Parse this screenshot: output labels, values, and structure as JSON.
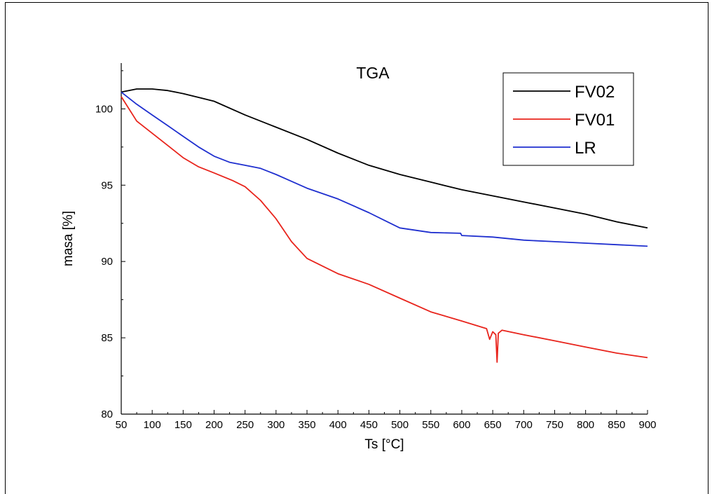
{
  "chart_data": {
    "type": "line",
    "title": "TGA",
    "xlabel": "Ts [°C]",
    "ylabel": "masa [%]",
    "xlim": [
      50,
      900
    ],
    "ylim": [
      80,
      103
    ],
    "xticks": [
      50,
      100,
      150,
      200,
      250,
      300,
      350,
      400,
      450,
      500,
      550,
      600,
      650,
      700,
      750,
      800,
      850,
      900
    ],
    "yticks": [
      80,
      85,
      90,
      95,
      100
    ],
    "legend_position": "top-right",
    "grid": false,
    "series": [
      {
        "name": "FV02",
        "color": "#000000",
        "points": [
          [
            50,
            101.1
          ],
          [
            75,
            101.3
          ],
          [
            100,
            101.3
          ],
          [
            125,
            101.2
          ],
          [
            150,
            101.0
          ],
          [
            180,
            100.7
          ],
          [
            200,
            100.5
          ],
          [
            250,
            99.6
          ],
          [
            300,
            98.8
          ],
          [
            350,
            98.0
          ],
          [
            400,
            97.1
          ],
          [
            450,
            96.3
          ],
          [
            500,
            95.7
          ],
          [
            550,
            95.2
          ],
          [
            600,
            94.7
          ],
          [
            650,
            94.3
          ],
          [
            700,
            93.9
          ],
          [
            750,
            93.5
          ],
          [
            800,
            93.1
          ],
          [
            850,
            92.6
          ],
          [
            900,
            92.2
          ]
        ]
      },
      {
        "name": "FV01",
        "color": "#e8241c",
        "points": [
          [
            50,
            100.8
          ],
          [
            75,
            99.2
          ],
          [
            100,
            98.4
          ],
          [
            125,
            97.6
          ],
          [
            150,
            96.8
          ],
          [
            175,
            96.2
          ],
          [
            200,
            95.8
          ],
          [
            230,
            95.3
          ],
          [
            250,
            94.9
          ],
          [
            275,
            94.0
          ],
          [
            300,
            92.8
          ],
          [
            325,
            91.3
          ],
          [
            350,
            90.2
          ],
          [
            375,
            89.7
          ],
          [
            400,
            89.2
          ],
          [
            450,
            88.5
          ],
          [
            500,
            87.6
          ],
          [
            550,
            86.7
          ],
          [
            600,
            86.1
          ],
          [
            640,
            85.6
          ],
          [
            645,
            84.9
          ],
          [
            650,
            85.4
          ],
          [
            655,
            85.2
          ],
          [
            657,
            83.4
          ],
          [
            659,
            85.3
          ],
          [
            665,
            85.5
          ],
          [
            700,
            85.2
          ],
          [
            750,
            84.8
          ],
          [
            800,
            84.4
          ],
          [
            850,
            84.0
          ],
          [
            900,
            83.7
          ]
        ]
      },
      {
        "name": "LR",
        "color": "#1f2fcf",
        "points": [
          [
            50,
            101.1
          ],
          [
            75,
            100.3
          ],
          [
            100,
            99.6
          ],
          [
            125,
            98.9
          ],
          [
            150,
            98.2
          ],
          [
            175,
            97.5
          ],
          [
            200,
            96.9
          ],
          [
            225,
            96.5
          ],
          [
            250,
            96.3
          ],
          [
            275,
            96.1
          ],
          [
            300,
            95.7
          ],
          [
            350,
            94.8
          ],
          [
            400,
            94.1
          ],
          [
            450,
            93.2
          ],
          [
            475,
            92.7
          ],
          [
            500,
            92.2
          ],
          [
            550,
            91.9
          ],
          [
            598,
            91.85
          ],
          [
            600,
            91.7
          ],
          [
            650,
            91.6
          ],
          [
            700,
            91.4
          ],
          [
            750,
            91.3
          ],
          [
            800,
            91.2
          ],
          [
            850,
            91.1
          ],
          [
            900,
            91.0
          ]
        ]
      }
    ]
  }
}
